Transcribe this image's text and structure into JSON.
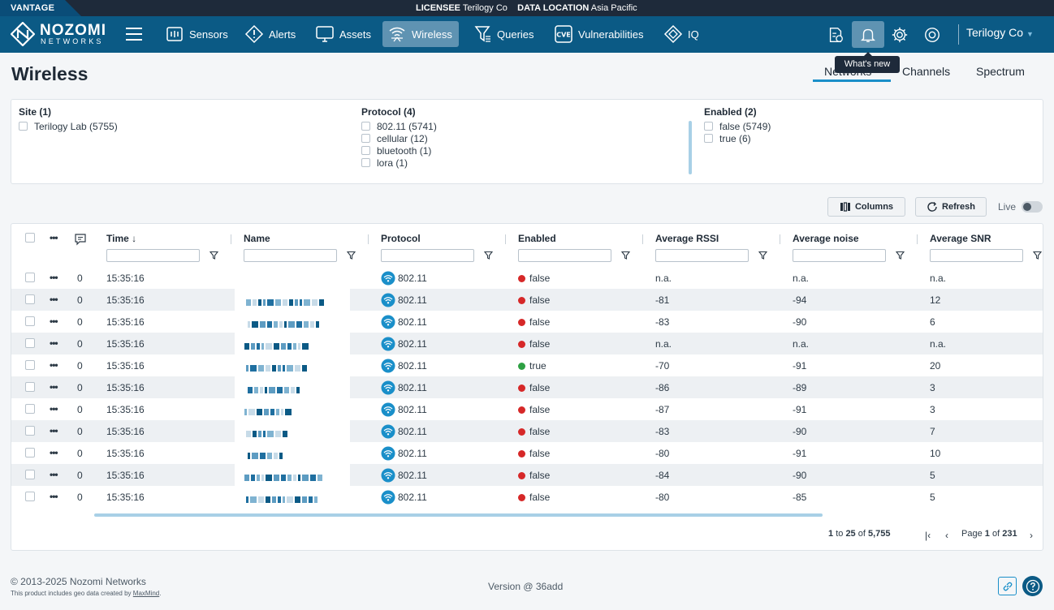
{
  "topbar": {
    "brand": "VANTAGE",
    "licensee_label": "LICENSEE",
    "licensee_value": "Terilogy Co",
    "location_label": "DATA LOCATION",
    "location_value": "Asia Pacific"
  },
  "logo": {
    "word1": "NOZOMI",
    "word2": "NETWORKS"
  },
  "nav": {
    "items": [
      {
        "label": "Sensors",
        "icon": "sensors-icon"
      },
      {
        "label": "Alerts",
        "icon": "alert-icon"
      },
      {
        "label": "Assets",
        "icon": "monitor-icon"
      },
      {
        "label": "Wireless",
        "icon": "wireless-icon",
        "active": true
      },
      {
        "label": "Queries",
        "icon": "queries-icon"
      },
      {
        "label": "Vulnerabilities",
        "icon": "cve-icon"
      },
      {
        "label": "IQ",
        "icon": "iq-icon"
      }
    ],
    "user": "Terilogy Co",
    "tooltip": "What's new"
  },
  "page": {
    "title": "Wireless",
    "tabs": [
      "Networks",
      "Channels",
      "Spectrum"
    ],
    "active_tab": "Networks"
  },
  "filters": {
    "site": {
      "title": "Site (1)",
      "options": [
        "Terilogy Lab (5755)"
      ]
    },
    "protocol": {
      "title": "Protocol (4)",
      "options": [
        "802.11 (5741)",
        "cellular (12)",
        "bluetooth (1)",
        "lora (1)"
      ]
    },
    "enabled": {
      "title": "Enabled (2)",
      "options": [
        "false (5749)",
        "true (6)"
      ]
    }
  },
  "toolbar": {
    "columns": "Columns",
    "refresh": "Refresh",
    "live": "Live"
  },
  "table": {
    "headers": {
      "time": "Time",
      "name": "Name",
      "protocol": "Protocol",
      "enabled": "Enabled",
      "rssi": "Average RSSI",
      "noise": "Average noise",
      "snr": "Average SNR"
    },
    "rows": [
      {
        "notes": "0",
        "time": "15:35:16",
        "protocol": "802.11",
        "enabled": "false",
        "rssi": "n.a.",
        "noise": "n.a.",
        "snr": "n.a."
      },
      {
        "notes": "0",
        "time": "15:35:16",
        "protocol": "802.11",
        "enabled": "false",
        "rssi": "-81",
        "noise": "-94",
        "snr": "12"
      },
      {
        "notes": "0",
        "time": "15:35:16",
        "protocol": "802.11",
        "enabled": "false",
        "rssi": "-83",
        "noise": "-90",
        "snr": "6"
      },
      {
        "notes": "0",
        "time": "15:35:16",
        "protocol": "802.11",
        "enabled": "false",
        "rssi": "n.a.",
        "noise": "n.a.",
        "snr": "n.a."
      },
      {
        "notes": "0",
        "time": "15:35:16",
        "protocol": "802.11",
        "enabled": "true",
        "rssi": "-70",
        "noise": "-91",
        "snr": "20"
      },
      {
        "notes": "0",
        "time": "15:35:16",
        "protocol": "802.11",
        "enabled": "false",
        "rssi": "-86",
        "noise": "-89",
        "snr": "3"
      },
      {
        "notes": "0",
        "time": "15:35:16",
        "protocol": "802.11",
        "enabled": "false",
        "rssi": "-87",
        "noise": "-91",
        "snr": "3"
      },
      {
        "notes": "0",
        "time": "15:35:16",
        "protocol": "802.11",
        "enabled": "false",
        "rssi": "-83",
        "noise": "-90",
        "snr": "7"
      },
      {
        "notes": "0",
        "time": "15:35:16",
        "protocol": "802.11",
        "enabled": "false",
        "rssi": "-80",
        "noise": "-91",
        "snr": "10"
      },
      {
        "notes": "0",
        "time": "15:35:16",
        "protocol": "802.11",
        "enabled": "false",
        "rssi": "-84",
        "noise": "-90",
        "snr": "5"
      },
      {
        "notes": "0",
        "time": "15:35:16",
        "protocol": "802.11",
        "enabled": "false",
        "rssi": "-80",
        "noise": "-85",
        "snr": "5"
      }
    ],
    "pager": {
      "from": "1",
      "to_word": "to",
      "to": "25",
      "of_word": "of",
      "total": "5,755",
      "page_word": "Page",
      "page": "1",
      "page_of_word": "of",
      "pages": "231"
    }
  },
  "colors": {
    "enabled_false": "#d62828",
    "enabled_true": "#2ea043",
    "accent": "#1a8fc9",
    "nav": "#0b5a85"
  },
  "footer": {
    "copyright": "© 2013-2025 Nozomi Networks",
    "geo_text": "This product includes geo data created by",
    "geo_link": "MaxMind",
    "geo_end": ".",
    "version": "Version @ 36add"
  }
}
